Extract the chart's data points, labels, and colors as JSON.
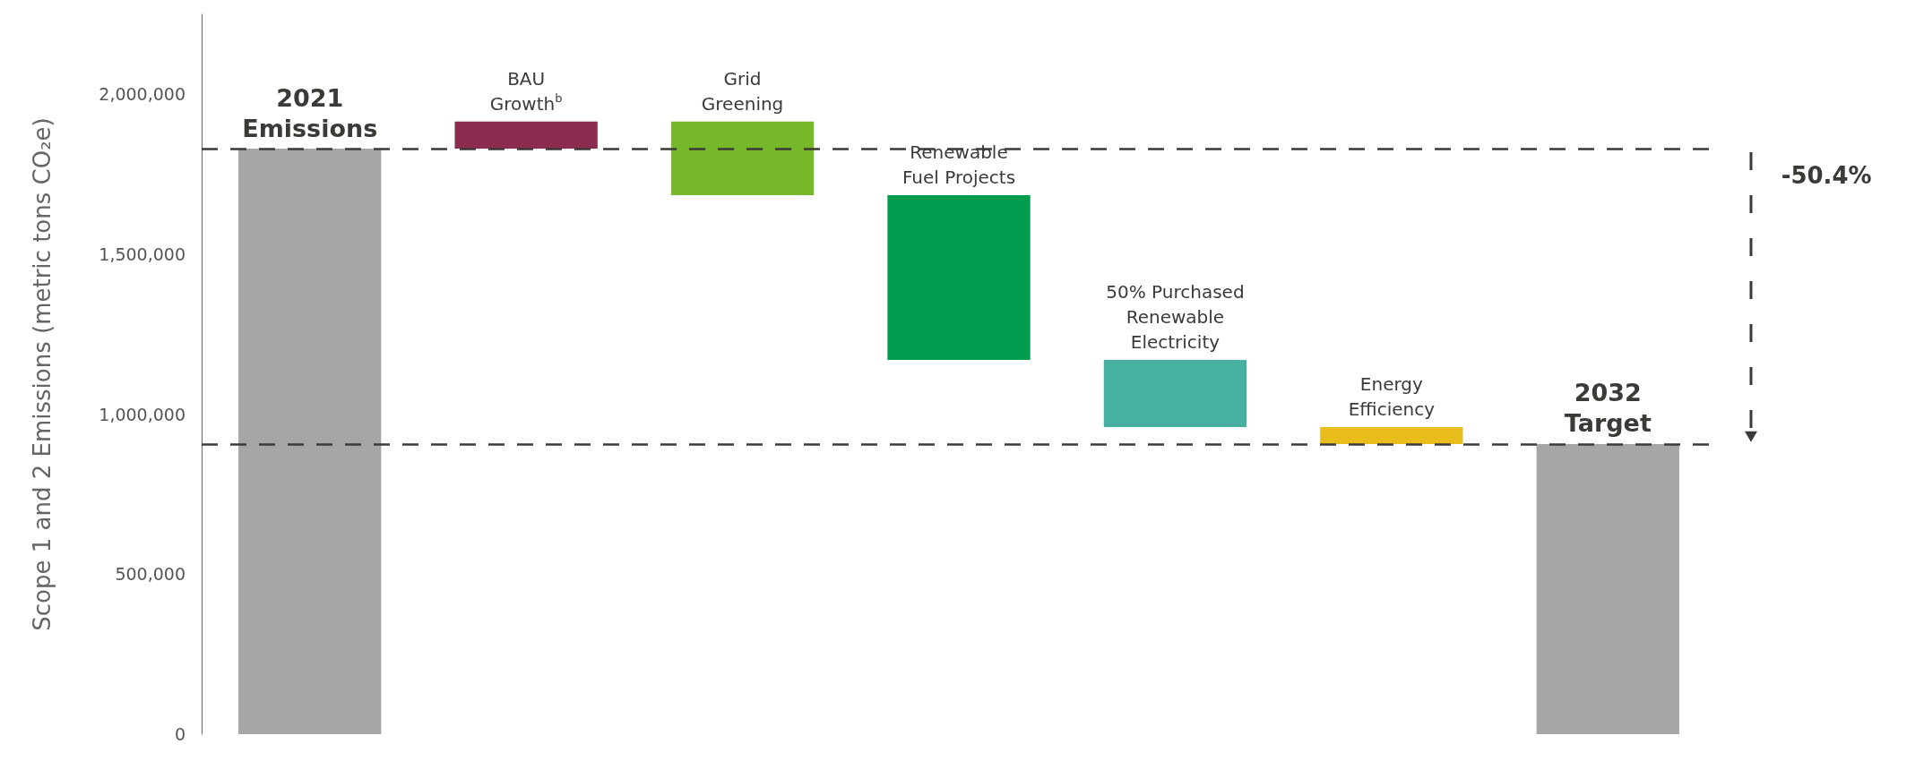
{
  "chart_data": {
    "type": "bar",
    "ylabel": "Scope 1 and 2 Emissions (metric tons CO₂e)",
    "categories": [
      "2021\nEmissions",
      "BAU\nGrowth$^{b}$",
      "Grid\nGreening",
      "Renewable\nFuel Projects",
      "50% Purchased\nRenewable\nElectricity",
      "Energy\nEfficiency",
      "2032\nTarget"
    ],
    "values": [
      1830000,
      85000,
      -230000,
      -515000,
      -210000,
      -53000,
      907000
    ],
    "base": [
      0,
      1830000,
      1915000,
      1685000,
      1170000,
      960000,
      0
    ],
    "colors": [
      "#a6a6a6",
      "#8b2c50",
      "#76b82a",
      "#009d4e",
      "#48b0a1",
      "#e8bd1c",
      "#a6a6a6"
    ],
    "ylim": [
      0,
      2250000
    ],
    "yticks": [
      0,
      {
        "value": 500000,
        "label": "500,000"
      },
      {
        "value": 1000000,
        "label": "1,000,000"
      },
      {
        "value": 1500000,
        "label": "1,500,000"
      },
      {
        "value": 2000000,
        "label": "2,000,000"
      }
    ],
    "grid": false,
    "ref_lines": [
      {
        "axis": "y",
        "value": 1830000,
        "color": "#3c3a36",
        "line_style": "dashed"
      },
      {
        "axis": "y",
        "value": 907000,
        "color": "#3c3a36",
        "line_style": "dashed"
      }
    ],
    "annotations": [
      "-50.4%"
    ]
  }
}
